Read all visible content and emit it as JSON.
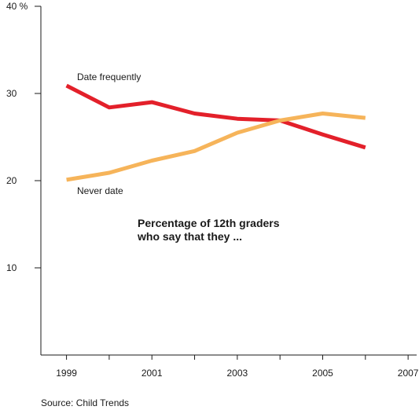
{
  "chart_data": {
    "type": "line",
    "x": [
      1999,
      2000,
      2001,
      2002,
      2003,
      2004,
      2005,
      2006
    ],
    "xticks": [
      "1999",
      "2001",
      "2003",
      "2005",
      "2007"
    ],
    "xlim": [
      1998.4,
      2007.2
    ],
    "yticks": [
      "40 %",
      "30",
      "20",
      "10"
    ],
    "ylim": [
      0,
      40
    ],
    "series": [
      {
        "name": "Date frequently",
        "color": "#e3202a",
        "values": [
          30.9,
          28.4,
          29.0,
          27.7,
          27.1,
          26.9,
          25.3,
          23.8
        ]
      },
      {
        "name": "Never date",
        "color": "#f6b45a",
        "values": [
          20.1,
          20.9,
          22.3,
          23.4,
          25.5,
          26.9,
          27.7,
          27.2
        ]
      }
    ],
    "annotation": [
      "Percentage of 12th graders",
      "who say that they ..."
    ],
    "source": "Source:  Child Trends",
    "grid": false,
    "legend": "none"
  }
}
